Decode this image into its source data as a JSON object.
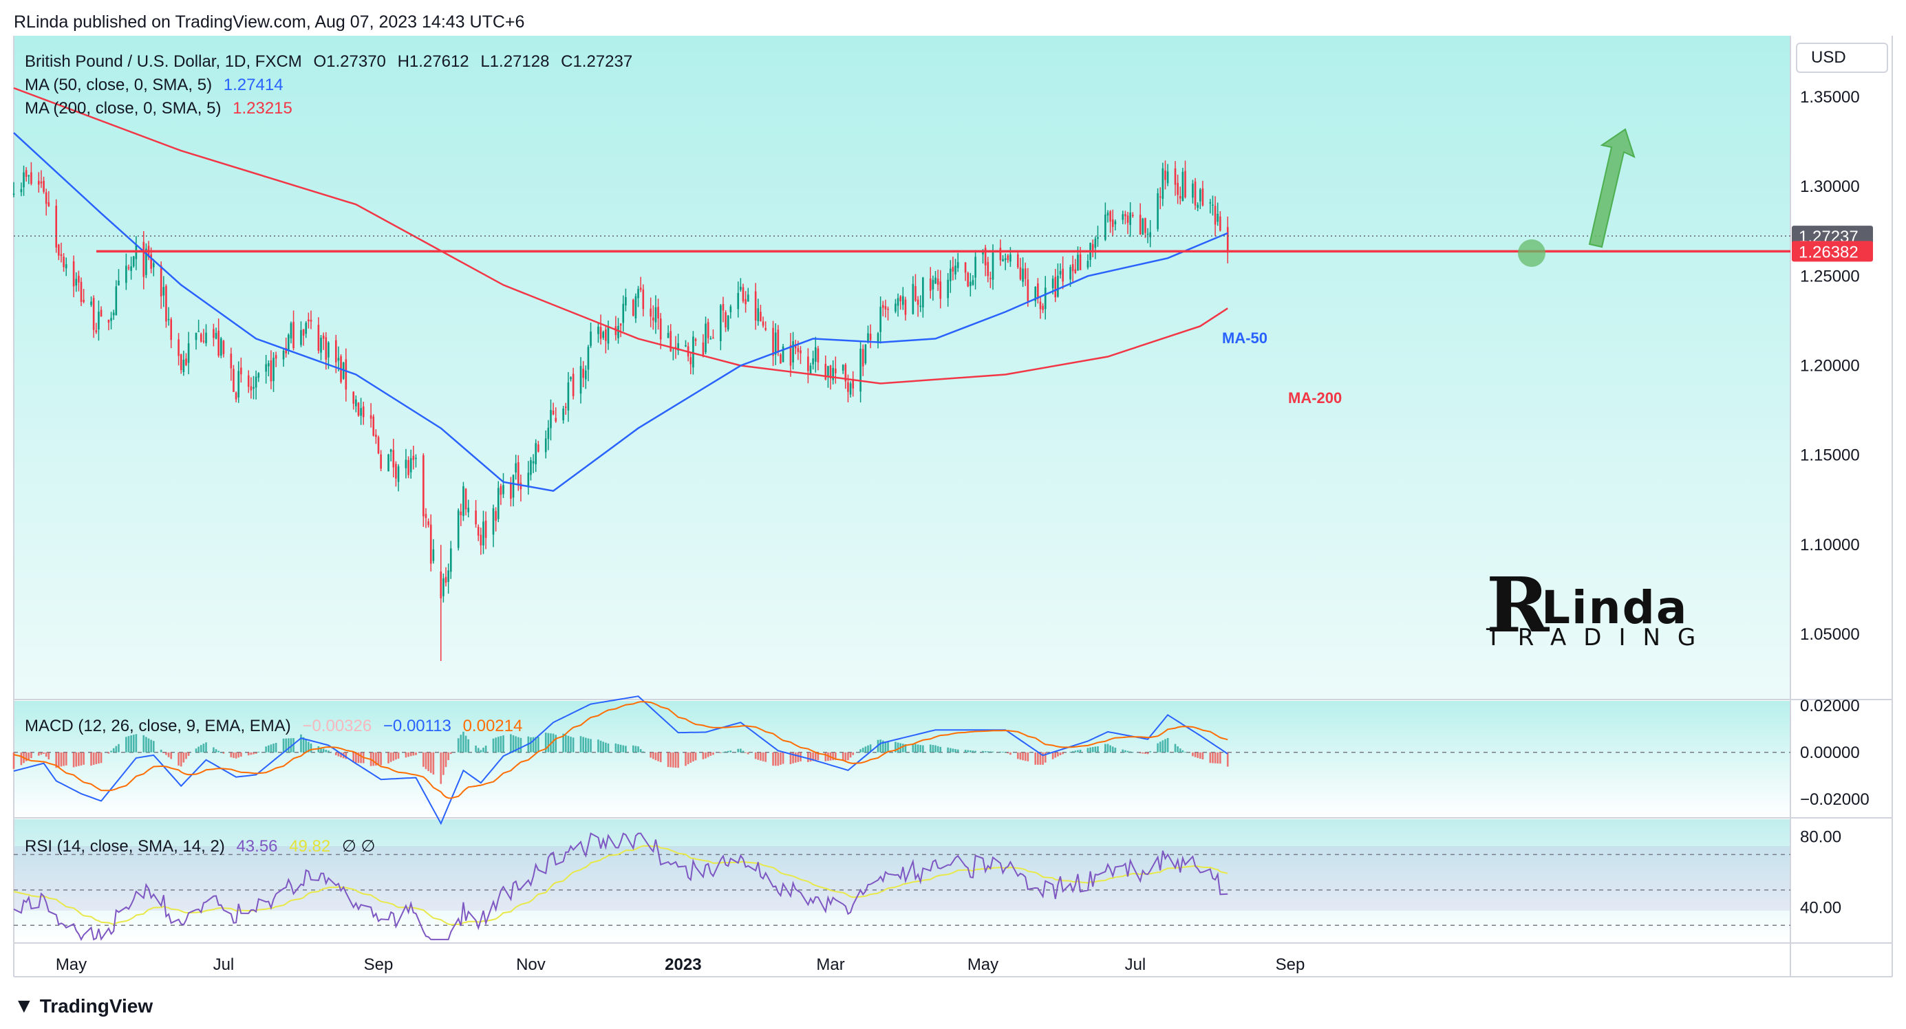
{
  "header": {
    "published": "RLinda published on TradingView.com, Aug 07, 2023 14:43 UTC+6"
  },
  "legend": {
    "symbol": "British Pound / U.S. Dollar, 1D, FXCM",
    "open": "O1.27370",
    "high": "H1.27612",
    "low": "L1.27128",
    "close": "C1.27237",
    "ma50_label": "MA (50, close, 0, SMA, 5)",
    "ma50_value": "1.27414",
    "ma200_label": "MA (200, close, 0, SMA, 5)",
    "ma200_value": "1.23215",
    "macd_label": "MACD (12, 26, close, 9, EMA, EMA)",
    "macd_hist": "−0.00326",
    "macd_value": "−0.00113",
    "macd_signal": "0.00214",
    "rsi_label": "RSI (14, close, SMA, 14, 2)",
    "rsi_value": "43.56",
    "rsi_ma": "49.82",
    "rsi_extra": "∅ ∅"
  },
  "currency_button": "USD",
  "annotations": {
    "ma50": "MA-50",
    "ma200": "MA-200"
  },
  "brand": {
    "r": "R",
    "linda": "Linda",
    "trading": "TRADING"
  },
  "footer": {
    "logo": "TradingView"
  },
  "colors": {
    "background_top": "#b2f0ec",
    "background_bottom": "#ffffff",
    "bull": "#089981",
    "bear": "#f23645",
    "ma50": "#2962ff",
    "ma200": "#f23645",
    "macd": "#2962ff",
    "signal": "#ff6d00",
    "rsi": "#7e57c2",
    "rsi_ma": "#e8e84a",
    "support": "#f23645",
    "arrow": "#66bb6a"
  },
  "chart_data": [
    {
      "type": "candlestick",
      "title": "British Pound / U.S. Dollar, 1D, FXCM",
      "x_axis_labels": [
        "May",
        "Jul",
        "Sep",
        "Nov",
        "2023",
        "Mar",
        "May",
        "Jul",
        "Sep"
      ],
      "y_axis_ticks": [
        "1.35000",
        "1.30000",
        "1.25000",
        "1.20000",
        "1.15000",
        "1.10000",
        "1.05000"
      ],
      "ylim": [
        1.025,
        1.375
      ],
      "price_markers": [
        {
          "label": "1.27237",
          "value": 1.27237,
          "color": "#5d606b"
        },
        {
          "label": "1.26382",
          "value": 1.26382,
          "color": "#f23645"
        }
      ],
      "support_level": 1.26382,
      "close_path": [
        [
          "2022-04-08",
          1.305
        ],
        [
          "2022-04-20",
          1.3
        ],
        [
          "2022-04-25",
          1.27
        ],
        [
          "2022-05-05",
          1.24
        ],
        [
          "2022-05-13",
          1.22
        ],
        [
          "2022-05-27",
          1.26
        ],
        [
          "2022-06-03",
          1.255
        ],
        [
          "2022-06-14",
          1.2
        ],
        [
          "2022-06-24",
          1.225
        ],
        [
          "2022-07-06",
          1.19
        ],
        [
          "2022-07-14",
          1.185
        ],
        [
          "2022-08-01",
          1.225
        ],
        [
          "2022-08-12",
          1.21
        ],
        [
          "2022-08-23",
          1.18
        ],
        [
          "2022-09-02",
          1.15
        ],
        [
          "2022-09-16",
          1.14
        ],
        [
          "2022-09-26",
          1.07
        ],
        [
          "2022-10-05",
          1.13
        ],
        [
          "2022-10-12",
          1.105
        ],
        [
          "2022-10-21",
          1.13
        ],
        [
          "2022-11-01",
          1.145
        ],
        [
          "2022-11-10",
          1.17
        ],
        [
          "2022-11-25",
          1.21
        ],
        [
          "2022-12-14",
          1.24
        ],
        [
          "2022-12-30",
          1.205
        ],
        [
          "2023-01-10",
          1.215
        ],
        [
          "2023-01-24",
          1.24
        ],
        [
          "2023-02-08",
          1.21
        ],
        [
          "2023-02-22",
          1.205
        ],
        [
          "2023-03-08",
          1.19
        ],
        [
          "2023-03-21",
          1.225
        ],
        [
          "2023-04-12",
          1.245
        ],
        [
          "2023-05-10",
          1.26
        ],
        [
          "2023-05-25",
          1.235
        ],
        [
          "2023-06-12",
          1.265
        ],
        [
          "2023-06-20",
          1.28
        ],
        [
          "2023-07-06",
          1.275
        ],
        [
          "2023-07-14",
          1.31
        ],
        [
          "2023-07-27",
          1.29
        ],
        [
          "2023-08-07",
          1.272
        ]
      ],
      "ma50_path": [
        [
          "2022-04-08",
          1.33
        ],
        [
          "2022-05-13",
          1.285
        ],
        [
          "2022-06-14",
          1.245
        ],
        [
          "2022-07-14",
          1.215
        ],
        [
          "2022-08-23",
          1.195
        ],
        [
          "2022-09-26",
          1.165
        ],
        [
          "2022-10-21",
          1.135
        ],
        [
          "2022-11-10",
          1.13
        ],
        [
          "2022-12-14",
          1.165
        ],
        [
          "2023-01-24",
          1.2
        ],
        [
          "2023-02-22",
          1.215
        ],
        [
          "2023-03-21",
          1.213
        ],
        [
          "2023-04-12",
          1.215
        ],
        [
          "2023-05-10",
          1.23
        ],
        [
          "2023-06-12",
          1.25
        ],
        [
          "2023-07-14",
          1.26
        ],
        [
          "2023-08-07",
          1.274
        ]
      ],
      "ma200_path": [
        [
          "2022-04-08",
          1.355
        ],
        [
          "2022-06-14",
          1.32
        ],
        [
          "2022-08-23",
          1.29
        ],
        [
          "2022-10-21",
          1.245
        ],
        [
          "2022-12-14",
          1.215
        ],
        [
          "2023-01-24",
          1.2
        ],
        [
          "2023-02-22",
          1.195
        ],
        [
          "2023-03-21",
          1.19
        ],
        [
          "2023-05-10",
          1.195
        ],
        [
          "2023-06-20",
          1.205
        ],
        [
          "2023-07-27",
          1.222
        ],
        [
          "2023-08-07",
          1.232
        ]
      ],
      "series": [
        {
          "name": "MA (50, close, 0, SMA, 5)",
          "last": 1.27414
        },
        {
          "name": "MA (200, close, 0, SMA, 5)",
          "last": 1.23215
        }
      ]
    },
    {
      "type": "line",
      "title": "MACD (12, 26, close, 9, EMA, EMA)",
      "y_axis_ticks": [
        "0.02000",
        "0.00000",
        "−0.02000"
      ],
      "ylim": [
        -0.028,
        0.022
      ],
      "values": {
        "histogram": -0.00326,
        "macd": -0.00113,
        "signal": 0.00214
      }
    },
    {
      "type": "line",
      "title": "RSI (14, close, SMA, 14, 2)",
      "y_axis_ticks": [
        "80.00",
        "40.00"
      ],
      "bands": [
        70,
        50,
        30
      ],
      "ylim": [
        20,
        90
      ],
      "values": {
        "rsi": 43.56,
        "rsi_ma": 49.82
      }
    }
  ]
}
